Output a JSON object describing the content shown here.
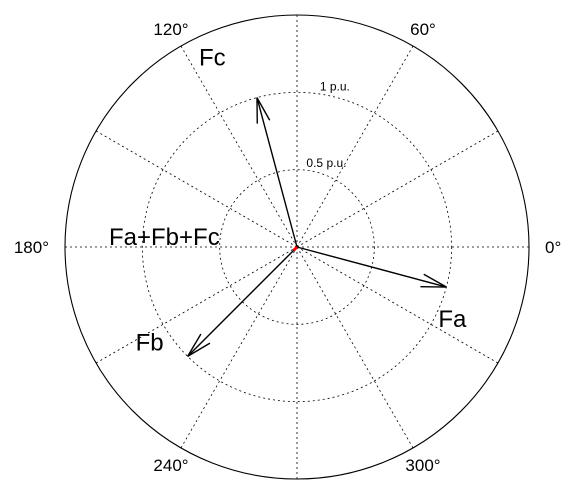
{
  "chart_data": {
    "type": "polar",
    "title": "",
    "angle_unit": "degrees",
    "angle_ticks": [
      0,
      30,
      60,
      90,
      120,
      150,
      180,
      210,
      240,
      270,
      300,
      330
    ],
    "angle_labels": [
      {
        "angle": 0,
        "label": "0°"
      },
      {
        "angle": 60,
        "label": "60°"
      },
      {
        "angle": 120,
        "label": "120°"
      },
      {
        "angle": 180,
        "label": "180°"
      },
      {
        "angle": 240,
        "label": "240°"
      },
      {
        "angle": 300,
        "label": "300°"
      }
    ],
    "radial_max": 1.5,
    "radial_rings": [
      0.5,
      1,
      1.5
    ],
    "ring_labels": [
      {
        "r": 1,
        "label": "1 p.u."
      },
      {
        "r": 0.5,
        "label": "0.5 p.u."
      }
    ],
    "grid": true,
    "vectors": [
      {
        "name": "Fa",
        "magnitude": 1.0,
        "angle": -15,
        "color": "#000000"
      },
      {
        "name": "Fb",
        "magnitude": 1.0,
        "angle": 225,
        "color": "#000000"
      },
      {
        "name": "Fc",
        "magnitude": 1.0,
        "angle": 105,
        "color": "#000000"
      },
      {
        "name": "Fa+Fb+Fc",
        "magnitude": 0.03,
        "angle": 225,
        "color": "#ff0000"
      }
    ]
  }
}
